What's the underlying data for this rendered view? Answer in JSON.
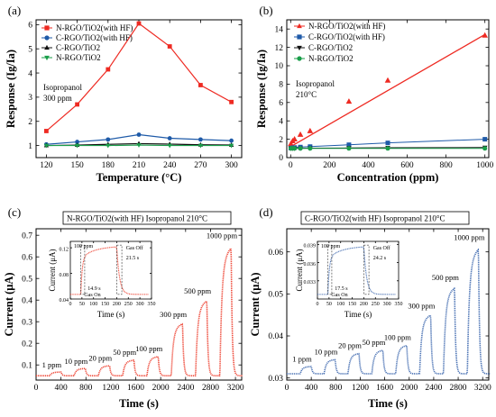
{
  "chart_data": [
    {
      "panel": "(a)",
      "type": "line",
      "xlabel": "Temperature (°C)",
      "ylabel": "Response (Ig/Ia)",
      "xlim": [
        110,
        310
      ],
      "ylim": [
        0.5,
        6.2
      ],
      "xticks": [
        120,
        150,
        180,
        210,
        240,
        270,
        300
      ],
      "yticks": [
        1,
        2,
        3,
        4,
        5,
        6
      ],
      "annotation": [
        "Isopropanol",
        "300 ppm"
      ],
      "legend_position": "top-left",
      "x": [
        120,
        150,
        180,
        210,
        240,
        270,
        300
      ],
      "series": [
        {
          "name": "N-RGO/TiO2(with HF)",
          "color": "#ee2a22",
          "marker": "square",
          "values": [
            1.6,
            2.7,
            4.15,
            6.05,
            5.1,
            3.5,
            2.8
          ]
        },
        {
          "name": "C-RGO/TiO2(with HF)",
          "color": "#1e5aa8",
          "marker": "circle",
          "values": [
            1.05,
            1.15,
            1.25,
            1.45,
            1.3,
            1.25,
            1.2
          ]
        },
        {
          "name": "C-RGO/TiO2",
          "color": "#111111",
          "marker": "triangle-up",
          "values": [
            1.0,
            1.02,
            1.05,
            1.08,
            1.06,
            1.03,
            1.02
          ]
        },
        {
          "name": "N-RGO/TiO2",
          "color": "#1a9e4a",
          "marker": "triangle-down",
          "values": [
            1.0,
            1.0,
            1.0,
            1.02,
            1.0,
            1.0,
            1.0
          ]
        }
      ]
    },
    {
      "panel": "(b)",
      "type": "scatter",
      "xlabel": "Concentration (ppm)",
      "ylabel": "Response (Ig/Ia)",
      "xlim": [
        -20,
        1020
      ],
      "ylim": [
        0,
        15
      ],
      "xticks": [
        0,
        200,
        400,
        600,
        800,
        1000
      ],
      "yticks": [
        0,
        2,
        4,
        6,
        8,
        10,
        12,
        14
      ],
      "annotation": [
        "Isopropanol",
        "210°C"
      ],
      "legend_position": "top-left",
      "x": [
        1,
        10,
        20,
        50,
        100,
        300,
        500,
        1000
      ],
      "series": [
        {
          "name": "N-RGO/TiO2(with HF)",
          "color": "#ee2a22",
          "marker": "triangle-up",
          "values": [
            1.5,
            1.8,
            2.0,
            2.5,
            2.9,
            6.1,
            8.4,
            13.3
          ]
        },
        {
          "name": "C-RGO/TiO2(with HF)",
          "color": "#1e5aa8",
          "marker": "square",
          "values": [
            1.03,
            1.07,
            1.1,
            1.15,
            1.2,
            1.4,
            1.6,
            2.0
          ]
        },
        {
          "name": "C-RGO/TiO2",
          "color": "#111111",
          "marker": "triangle-down",
          "values": [
            1.0,
            1.0,
            1.01,
            1.02,
            1.03,
            1.05,
            1.08,
            1.1
          ]
        },
        {
          "name": "N-RGO/TiO2",
          "color": "#1a9e4a",
          "marker": "circle",
          "values": [
            1.0,
            1.0,
            1.0,
            1.0,
            1.0,
            1.0,
            1.0,
            1.0
          ]
        }
      ],
      "fit_line": {
        "color": "#ee2a22",
        "x": [
          0,
          1000
        ],
        "y": [
          1.2,
          13.4
        ]
      }
    },
    {
      "panel": "(c)",
      "type": "line",
      "title": "N-RGO/TiO2(with HF) Isopropanol 210°C",
      "xlabel": "Time (s)",
      "ylabel": "Current (μA)",
      "xlim": [
        0,
        3300
      ],
      "ylim": [
        0.03,
        0.73
      ],
      "xticks": [
        0,
        400,
        800,
        1200,
        1600,
        2000,
        2400,
        2800,
        3200
      ],
      "yticks": [
        0.1,
        0.2,
        0.3,
        0.4,
        0.5,
        0.6,
        0.7
      ],
      "color": "#ee4a3a",
      "baseline": 0.05,
      "pulses": [
        {
          "label": "1 ppm",
          "on": 220,
          "off": 400,
          "peak": 0.068
        },
        {
          "label": "10 ppm",
          "on": 610,
          "off": 790,
          "peak": 0.085
        },
        {
          "label": "20 ppm",
          "on": 1000,
          "off": 1180,
          "peak": 0.098
        },
        {
          "label": "50 ppm",
          "on": 1390,
          "off": 1570,
          "peak": 0.125
        },
        {
          "label": "100 ppm",
          "on": 1780,
          "off": 1960,
          "peak": 0.142
        },
        {
          "label": "300 ppm",
          "on": 2170,
          "off": 2350,
          "peak": 0.3
        },
        {
          "label": "500 ppm",
          "on": 2560,
          "off": 2740,
          "peak": 0.41
        },
        {
          "label": "1000 ppm",
          "on": 2950,
          "off": 3130,
          "peak": 0.665
        }
      ],
      "inset": {
        "xlabel": "Time (s)",
        "ylabel": "Current (μA)",
        "xlim": [
          0,
          350
        ],
        "ylim": [
          0.04,
          0.13
        ],
        "xticks": [
          0,
          50,
          100,
          150,
          200,
          250,
          300,
          350
        ],
        "yticks": [
          0.04,
          0.08,
          0.12
        ],
        "label_conc": "100 ppm",
        "gas_on": "Gas On",
        "gas_off": "Gas Off",
        "t_resp": "14.9 s",
        "t_rec": "21.5 s"
      }
    },
    {
      "panel": "(d)",
      "type": "line",
      "title": "C-RGO/TiO2(with HF) Isopropanol 210°C",
      "xlabel": "Time (s)",
      "ylabel": "Current (μA)",
      "xlim": [
        0,
        3300
      ],
      "ylim": [
        0.0295,
        0.0655
      ],
      "xticks": [
        0,
        400,
        800,
        1200,
        1600,
        2000,
        2400,
        2800,
        3200
      ],
      "yticks": [
        0.03,
        0.04,
        0.05,
        0.06
      ],
      "color": "#4a72b4",
      "baseline": 0.031,
      "pulses": [
        {
          "label": "1 ppm",
          "on": 220,
          "off": 400,
          "peak": 0.0328
        },
        {
          "label": "10 ppm",
          "on": 610,
          "off": 790,
          "peak": 0.0345
        },
        {
          "label": "20 ppm",
          "on": 1000,
          "off": 1180,
          "peak": 0.036
        },
        {
          "label": "50 ppm",
          "on": 1390,
          "off": 1570,
          "peak": 0.0368
        },
        {
          "label": "100 ppm",
          "on": 1780,
          "off": 1960,
          "peak": 0.038
        },
        {
          "label": "300 ppm",
          "on": 2170,
          "off": 2350,
          "peak": 0.0455
        },
        {
          "label": "500 ppm",
          "on": 2560,
          "off": 2740,
          "peak": 0.0522
        },
        {
          "label": "1000 ppm",
          "on": 2950,
          "off": 3130,
          "peak": 0.0618
        }
      ],
      "inset": {
        "xlabel": "Time (s)",
        "ylabel": "Current (μA)",
        "xlim": [
          0,
          350
        ],
        "ylim": [
          0.03,
          0.0395
        ],
        "xticks": [
          0,
          50,
          100,
          150,
          200,
          250,
          300,
          350
        ],
        "yticks": [
          0.033,
          0.036,
          0.039
        ],
        "label_conc": "100 ppm",
        "gas_on": "Gas On",
        "gas_off": "Gas Off",
        "t_resp": "17.5 s",
        "t_rec": "24.2 s"
      }
    }
  ]
}
